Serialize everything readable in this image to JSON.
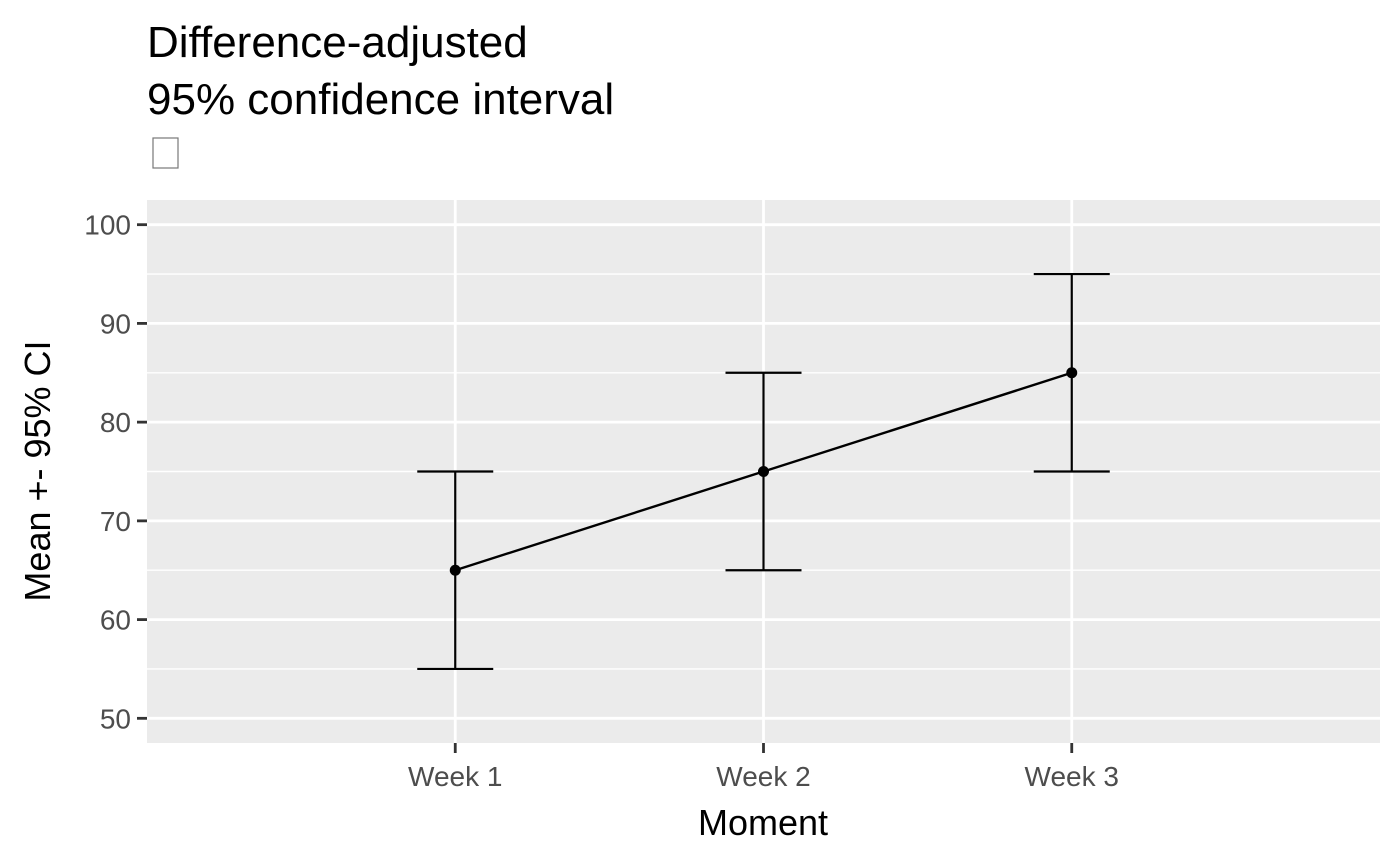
{
  "chart_data": {
    "type": "line",
    "title_lines": [
      "Difference-adjusted",
      "95% confidence interval"
    ],
    "xlabel": "Moment",
    "ylabel": "Mean +- 95% CI",
    "categories": [
      "Week 1",
      "Week 2",
      "Week 3"
    ],
    "series": [
      {
        "values": [
          65,
          75,
          85
        ],
        "ci_lower": [
          55,
          65,
          75
        ],
        "ci_upper": [
          75,
          85,
          95
        ]
      }
    ],
    "ylim": [
      47.5,
      102.5
    ],
    "yticks": [
      50,
      60,
      70,
      80,
      90,
      100
    ],
    "grid": true,
    "colors": {
      "panel_background": "#ebebeb",
      "grid": "#ffffff",
      "line": "#000000",
      "tick": "#333333"
    }
  }
}
